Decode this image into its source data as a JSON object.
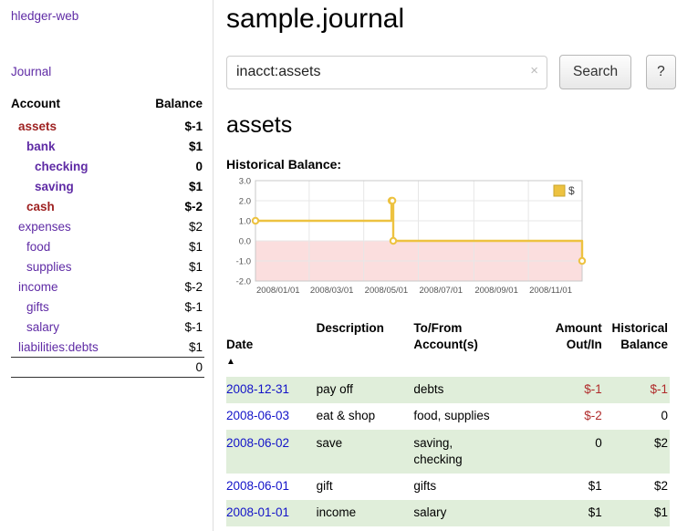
{
  "colors": {
    "link_purple": "#5f2ba5",
    "link_blue": "#1313c8",
    "neg_strong": "#9e2222",
    "neg_light": "#c98f8f",
    "neg_table": "#b02b2b",
    "row_green": "#e0eeda",
    "chart_series": "#edc240",
    "chart_negative_region": "#fbdede"
  },
  "sidebar": {
    "app_title": "hledger-web",
    "nav_journal": "Journal",
    "accounts": {
      "headers": {
        "account": "Account",
        "balance": "Balance"
      },
      "rows": [
        {
          "name": "assets",
          "depth": 0,
          "balance": "$-1",
          "inacct": true
        },
        {
          "name": "bank",
          "depth": 1,
          "balance": "$1",
          "inacct": true
        },
        {
          "name": "checking",
          "depth": 2,
          "balance": "0",
          "inacct": true
        },
        {
          "name": "saving",
          "depth": 2,
          "balance": "$1",
          "inacct": true
        },
        {
          "name": "cash",
          "depth": 1,
          "balance": "$-2",
          "inacct": true
        },
        {
          "name": "expenses",
          "depth": 0,
          "balance": "$2",
          "inacct": false
        },
        {
          "name": "food",
          "depth": 1,
          "balance": "$1",
          "inacct": false
        },
        {
          "name": "supplies",
          "depth": 1,
          "balance": "$1",
          "inacct": false
        },
        {
          "name": "income",
          "depth": 0,
          "balance": "$-2",
          "inacct": false
        },
        {
          "name": "gifts",
          "depth": 1,
          "balance": "$-1",
          "inacct": false
        },
        {
          "name": "salary",
          "depth": 1,
          "balance": "$-1",
          "inacct": false
        },
        {
          "name": "liabilities:debts",
          "depth": 0,
          "balance": "$1",
          "inacct": false
        }
      ],
      "total": "0"
    }
  },
  "main": {
    "title": "sample.journal",
    "search": {
      "value": "inacct:assets",
      "clear_icon": "×",
      "search_button": "Search",
      "help_button": "?"
    },
    "account_heading": "assets",
    "chart_title": "Historical Balance:",
    "register": {
      "headers": {
        "date": "Date",
        "sort_icon": "▲",
        "description": "Description",
        "tofrom": "To/From\nAccount(s)",
        "amount": "Amount\nOut/In",
        "balance": "Historical\nBalance"
      },
      "rows": [
        {
          "date": "2008-12-31",
          "description": "pay off",
          "accounts": "debts",
          "amount": "$-1",
          "balance": "$-1"
        },
        {
          "date": "2008-06-03",
          "description": "eat & shop",
          "accounts": "food, supplies",
          "amount": "$-2",
          "balance": "0"
        },
        {
          "date": "2008-06-02",
          "description": "save",
          "accounts": "saving,\nchecking",
          "amount": "0",
          "balance": "$2"
        },
        {
          "date": "2008-06-01",
          "description": "gift",
          "accounts": "gifts",
          "amount": "$1",
          "balance": "$2"
        },
        {
          "date": "2008-01-01",
          "description": "income",
          "accounts": "salary",
          "amount": "$1",
          "balance": "$1"
        }
      ]
    }
  },
  "chart_data": {
    "type": "line",
    "title": "Historical Balance",
    "series": [
      {
        "name": "$",
        "points": [
          {
            "date": "2008-01-01",
            "value": 1
          },
          {
            "date": "2008-06-01",
            "value": 2
          },
          {
            "date": "2008-06-02",
            "value": 2
          },
          {
            "date": "2008-06-03",
            "value": 0
          },
          {
            "date": "2008-12-31",
            "value": -1
          }
        ]
      }
    ],
    "interpolation": "step-after",
    "x_range": [
      "2008-01-01",
      "2008-12-31"
    ],
    "ylim": [
      -2,
      3
    ],
    "y_ticks": [
      "3.0",
      "2.0",
      "1.0",
      "0.0",
      "-1.0",
      "-2.0"
    ],
    "x_ticks": [
      "2008/01/01",
      "2008/03/01",
      "2008/05/01",
      "2008/07/01",
      "2008/09/01",
      "2008/11/01"
    ],
    "grid": true,
    "legend_position": "top-right",
    "negative_region": {
      "from": -2,
      "to": 0
    }
  }
}
